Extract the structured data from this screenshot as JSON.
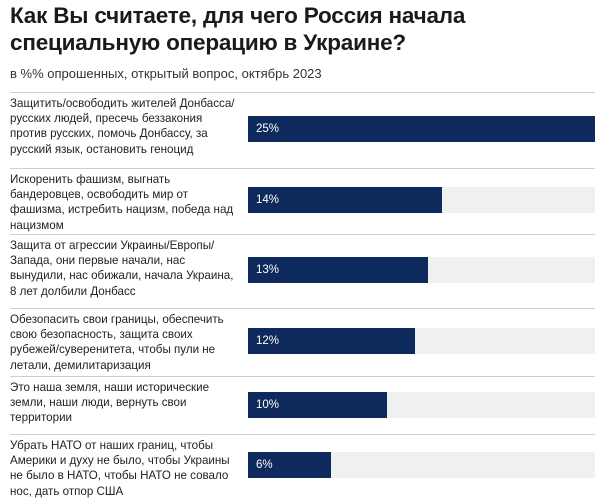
{
  "chart_data": {
    "type": "bar",
    "orientation": "horizontal",
    "title": "Как Вы считаете, для чего Россия начала специальную операцию в Украине?",
    "subtitle": "в %% опрошенных, открытый вопрос, октябрь 2023",
    "xlim": [
      0,
      25
    ],
    "value_suffix": "%",
    "colors": {
      "bar": "#0e2a5c",
      "track": "#f0f0f0",
      "divider": "#cfcfcf"
    },
    "categories": [
      "Защитить/освободить жителей Донбасса/русских людей, пресечь беззакония против русских, помочь Донбассу, за русский язык, остановить геноцид",
      "Искоренить фашизм, выгнать бандеровцев, освободить мир от фашизма, истребить нацизм, победа над нацизмом",
      "Защита от агрессии Украины/Европы/Запада, они первые начали, нас вынудили, нас обижали, начала Украина, 8 лет долбили Донбасс",
      "Обезопасить свои границы, обеспечить свою безопасность, защита своих рубежей/суверенитета, чтобы пули не летали, демилитаризация",
      "Это наша земля, наши исторические земли, наши люди, вернуть свои территории",
      "Убрать НАТО от наших границ, чтобы Америки и духу не было, чтобы Украины не было в НАТО, чтобы НАТО не совало нос, дать отпор США"
    ],
    "values": [
      25,
      14,
      13,
      12,
      10,
      6
    ]
  }
}
